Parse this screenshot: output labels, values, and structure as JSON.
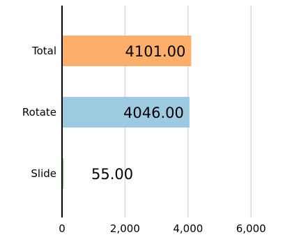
{
  "chart_data": {
    "type": "bar",
    "orientation": "horizontal",
    "categories": [
      "Total",
      "Rotate",
      "Slide"
    ],
    "values": [
      4101.0,
      4046.0,
      55.0
    ],
    "data_labels": [
      "4101.00",
      "4046.00",
      "55.00"
    ],
    "colors": [
      "#fdae6b",
      "#9ecae1",
      "#a1d99b"
    ],
    "xlim": [
      0,
      7300
    ],
    "x_ticks": [
      0,
      2000,
      4000,
      6000
    ],
    "x_tick_labels": [
      "0",
      "2,000",
      "4,000",
      "6,000"
    ],
    "grid": true,
    "grid_color": "#d9d9d9"
  }
}
